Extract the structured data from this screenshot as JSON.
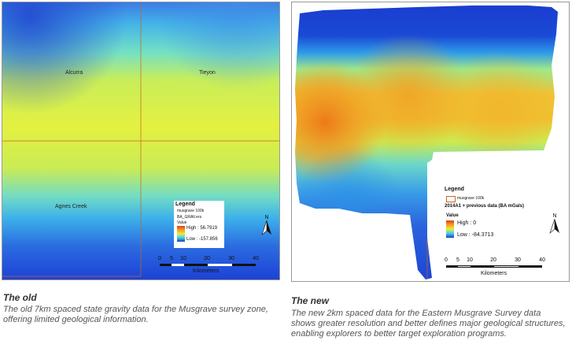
{
  "old_panel": {
    "places": [
      "Alcurra",
      "Tieyon",
      "Agnes Creek"
    ],
    "legend": {
      "title": "Legend",
      "entry1": "musgrave 100k",
      "entry2": "BA_GRAV.ers",
      "entry3": "Value",
      "high": "High : 56.7919",
      "low": "Low : -157.856"
    },
    "scale_ticks": [
      "0",
      "5",
      "10",
      "20",
      "30",
      "40"
    ],
    "scale_units": "Kilometers",
    "north_label": "N"
  },
  "new_panel": {
    "legend": {
      "title": "Legend",
      "entry1": "musgrave 100k",
      "dataset": "2014A1 + previous data (BA mGals)",
      "value_label": "Value",
      "high": "High : 0",
      "low": "Low : -84.3713"
    },
    "scale_ticks": [
      "0",
      "5",
      "10",
      "20",
      "30",
      "40"
    ],
    "scale_units": "Kilometers",
    "north_label": "N"
  },
  "captions": {
    "old_title": "The old",
    "old_text": "The old 7km spaced state gravity data for the Musgrave survey zone, offering limited geological information.",
    "new_title": "The new",
    "new_text": "The new 2km spaced data for the Eastern Musgrave Survey data shows greater resolution and better defines major geological structures, enabling explorers to better target exploration programs."
  },
  "colors": {
    "low_blue": "#1a3ccf",
    "mid_cyan": "#33c8e6",
    "mid_yellow": "#e6ef3c",
    "high_orange": "#f08a1c",
    "grid_line": "#c8651e"
  }
}
